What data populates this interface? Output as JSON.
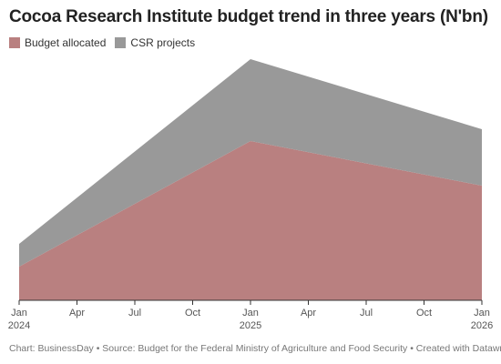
{
  "chart_data": {
    "type": "stacked-area",
    "title": "Cocoa Research Institute budget trend in three years (N'bn)",
    "x": [
      0,
      12,
      24
    ],
    "xlim": [
      0,
      24
    ],
    "xticks": [
      {
        "value": 0,
        "label": "Jan\n2024"
      },
      {
        "value": 3,
        "label": "Apr"
      },
      {
        "value": 6,
        "label": "Jul"
      },
      {
        "value": 9,
        "label": "Oct"
      },
      {
        "value": 12,
        "label": "Jan\n2025"
      },
      {
        "value": 15,
        "label": "Apr"
      },
      {
        "value": 18,
        "label": "Jul"
      },
      {
        "value": 21,
        "label": "Oct"
      },
      {
        "value": 24,
        "label": "Jan\n2026"
      }
    ],
    "ylim": [
      0,
      2.65
    ],
    "series": [
      {
        "name": "Budget allocated",
        "color": "#b98080",
        "values": [
          0.37,
          1.75,
          1.26
        ]
      },
      {
        "name": "CSR projects",
        "color": "#999999",
        "values": [
          0.25,
          0.9,
          0.62
        ]
      }
    ],
    "footer": "Chart: BusinessDay • Source: Budget for the Federal Ministry of Agriculture and Food Security • Created with Datawrapper"
  }
}
